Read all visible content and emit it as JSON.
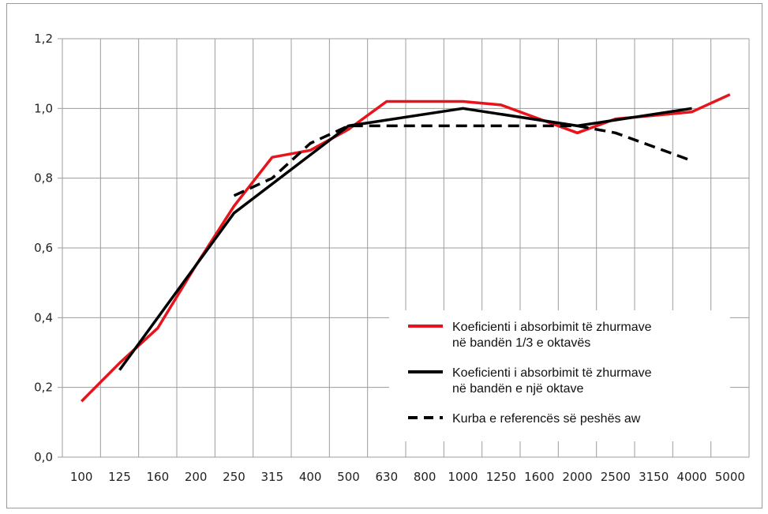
{
  "chart_data": {
    "type": "line",
    "categories": [
      "100",
      "125",
      "160",
      "200",
      "250",
      "315",
      "400",
      "500",
      "630",
      "800",
      "1000",
      "1250",
      "1600",
      "2000",
      "2500",
      "3150",
      "4000",
      "5000"
    ],
    "ylim": [
      0,
      1.2
    ],
    "yticks": [
      "0,0",
      "0,2",
      "0,4",
      "0,6",
      "0,8",
      "1,0",
      "1,2"
    ],
    "grid": true,
    "legend_position": "bottom-right",
    "series": [
      {
        "name": "Koeficienti i absorbimit të zhurmave në bandën 1/3 e oktavës",
        "legend_lines": [
          "Koeficienti i absorbimit të zhurmave",
          "në bandën 1/3 e oktavës"
        ],
        "color": "#e8141c",
        "dash": "solid",
        "values": [
          0.16,
          0.27,
          0.37,
          0.55,
          0.72,
          0.86,
          0.88,
          0.94,
          1.02,
          1.02,
          1.02,
          1.01,
          0.97,
          0.93,
          0.97,
          0.98,
          0.99,
          1.04
        ]
      },
      {
        "name": "Koeficienti i absorbimit të zhurmave në bandën e një oktave",
        "legend_lines": [
          "Koeficienti i absorbimit të zhurmave",
          "në bandën e një oktave"
        ],
        "color": "#000000",
        "dash": "solid",
        "points": [
          [
            "125",
            0.25
          ],
          [
            "250",
            0.7
          ],
          [
            "500",
            0.95
          ],
          [
            "1000",
            1.0
          ],
          [
            "2000",
            0.95
          ],
          [
            "4000",
            1.0
          ]
        ]
      },
      {
        "name": "Kurba e referencës së peshës aw",
        "legend_lines": [
          "Kurba e referencës së peshës aw"
        ],
        "color": "#000000",
        "dash": "dashed",
        "points": [
          [
            "250",
            0.75
          ],
          [
            "315",
            0.8
          ],
          [
            "400",
            0.9
          ],
          [
            "500",
            0.95
          ],
          [
            "630",
            0.95
          ],
          [
            "800",
            0.95
          ],
          [
            "1000",
            0.95
          ],
          [
            "1250",
            0.95
          ],
          [
            "1600",
            0.95
          ],
          [
            "2000",
            0.95
          ],
          [
            "2500",
            0.93
          ],
          [
            "3150",
            0.89
          ],
          [
            "4000",
            0.85
          ]
        ]
      }
    ]
  }
}
